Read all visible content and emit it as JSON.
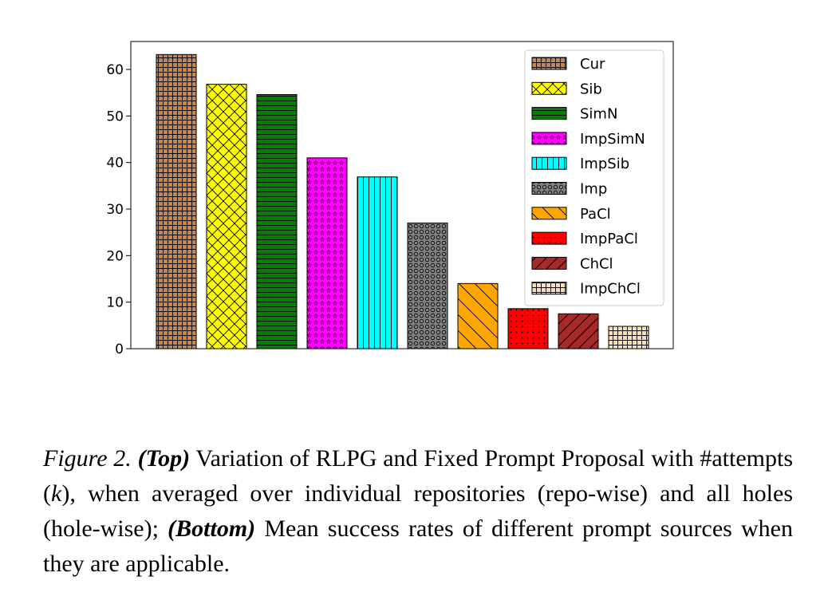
{
  "chart_data": {
    "type": "bar",
    "categories": [
      "Cur",
      "Sib",
      "SimN",
      "ImpSimN",
      "ImpSib",
      "Imp",
      "PaCl",
      "ImpPaCl",
      "ChCl",
      "ImpChCl"
    ],
    "values": [
      63.2,
      56.8,
      54.6,
      41.0,
      36.9,
      27.0,
      14.0,
      8.6,
      7.5,
      4.8
    ],
    "ylim": [
      0,
      66
    ],
    "yticks": [
      0,
      10,
      20,
      30,
      40,
      50,
      60
    ],
    "legend_position": "top-right",
    "grid": false,
    "colors": [
      "#cd853f",
      "#ffff00",
      "#008000",
      "#ff00ff",
      "#00ffff",
      "#808080",
      "#ffa500",
      "#ff0000",
      "#a52a2a",
      "#ffdead"
    ],
    "hatches": [
      "grid",
      "crosshatch",
      "horizontal",
      "stars",
      "vertical",
      "circles",
      "diagonal",
      "dots",
      "diagonal-bold",
      "grid"
    ]
  },
  "caption": {
    "figure_label": "Figure 2.",
    "top_label": "(Top)",
    "text1": " Variation of RLPG and Fixed Prompt Proposal with #attempts (",
    "k": "k",
    "text2": "), when averaged over individual repositories (repo-wise) and all holes (hole-wise); ",
    "bottom_label": "(Bottom)",
    "text3": " Mean success rates of different prompt sources when they are applicable."
  }
}
